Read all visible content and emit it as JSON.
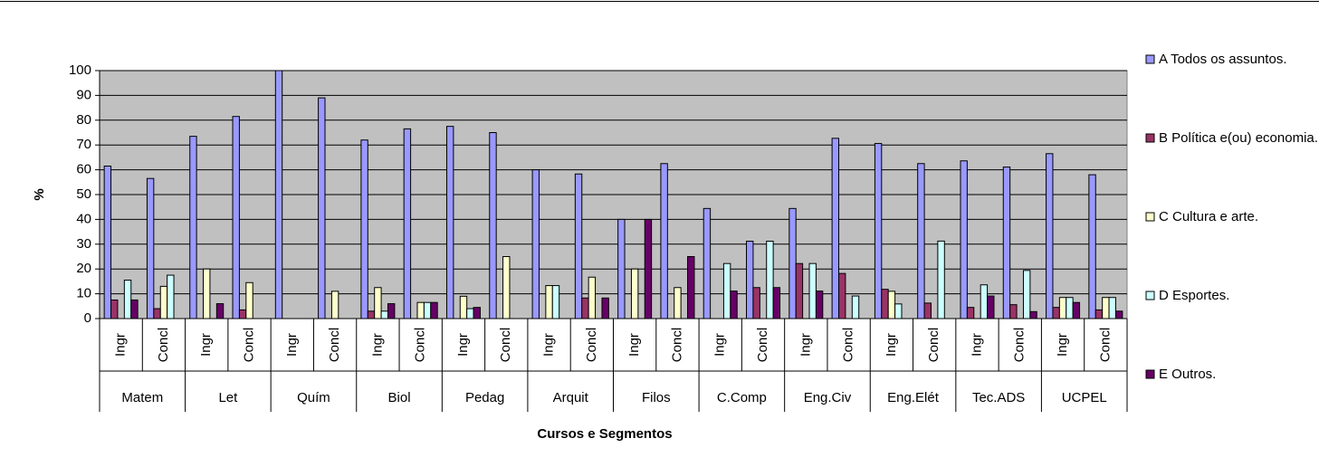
{
  "chart_data": {
    "type": "bar",
    "y_label": "%",
    "x_label": "Cursos e Segmentos",
    "groups": [
      "Matem",
      "Let",
      "Quím",
      "Biol",
      "Pedag",
      "Arquit",
      "Filos",
      "C.Comp",
      "Eng.Civ",
      "Eng.Elét",
      "Tec.ADS",
      "UCPEL"
    ],
    "categories": [
      "Ingr",
      "Concl",
      "Ingr",
      "Concl",
      "Ingr",
      "Concl",
      "Ingr",
      "Concl",
      "Ingr",
      "Concl",
      "Ingr",
      "Concl",
      "Ingr",
      "Concl",
      "Ingr",
      "Concl",
      "Ingr",
      "Concl",
      "Ingr",
      "Concl",
      "Ingr",
      "Concl",
      "Ingr",
      "Concl"
    ],
    "series": [
      {
        "name": "A Todos os assuntos.",
        "color": "#9999ff",
        "values": [
          61.5,
          56.5,
          73.5,
          81.5,
          100,
          89,
          72,
          76.5,
          77.5,
          75,
          60,
          58.3,
          40,
          62.5,
          44.4,
          31.2,
          44.4,
          72.7,
          70.6,
          62.5,
          63.6,
          61.1,
          66.5,
          58
        ]
      },
      {
        "name": "B Política e(ou) economia.",
        "color": "#993366",
        "values": [
          7.5,
          4,
          0,
          3.5,
          0,
          0,
          3,
          0,
          0,
          0,
          0,
          8.3,
          0,
          0,
          0,
          12.5,
          22.2,
          18.2,
          11.8,
          6.25,
          4.5,
          5.6,
          4.5,
          3.5
        ]
      },
      {
        "name": "C Cultura e arte.",
        "color": "#ffffcc",
        "values": [
          0,
          13,
          20,
          14.5,
          0,
          11,
          12.5,
          6.5,
          9,
          25,
          13.3,
          16.7,
          20,
          12.5,
          0,
          0,
          0,
          0,
          11,
          0,
          0,
          0,
          8.5,
          8.5
        ]
      },
      {
        "name": "D Esportes.",
        "color": "#ccffff",
        "values": [
          15.5,
          17.5,
          0,
          0,
          0,
          0,
          3,
          6.5,
          4,
          0,
          13.3,
          0,
          0,
          0,
          22.2,
          31.2,
          22.2,
          9.1,
          5.9,
          31.25,
          13.6,
          19.4,
          8.5,
          8.5
        ]
      },
      {
        "name": "E Outros.",
        "color": "#660066",
        "values": [
          7.5,
          0,
          6,
          0,
          0,
          0,
          6,
          6.5,
          4.5,
          0,
          0,
          8.3,
          40,
          25,
          11.1,
          12.5,
          11.1,
          0,
          0,
          0,
          9.1,
          2.8,
          6.5,
          3
        ]
      }
    ],
    "ylim": [
      0,
      100
    ],
    "yticks": [
      0,
      10,
      20,
      30,
      40,
      50,
      60,
      70,
      80,
      90,
      100
    ],
    "grid": true,
    "legend": "right",
    "plot_background": "#c0c0c0"
  }
}
